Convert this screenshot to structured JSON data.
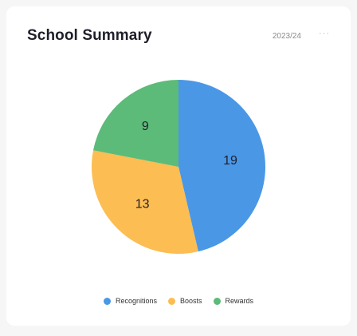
{
  "header": {
    "title": "School Summary",
    "period": "2023/24",
    "more": "···"
  },
  "chart_data": {
    "type": "pie",
    "title": "",
    "categories": [
      "Recognitions",
      "Boosts",
      "Rewards"
    ],
    "values": [
      19,
      13,
      9
    ],
    "colors": [
      "#4a97e6",
      "#fcbd52",
      "#5cbb78"
    ],
    "legend_position": "bottom"
  }
}
